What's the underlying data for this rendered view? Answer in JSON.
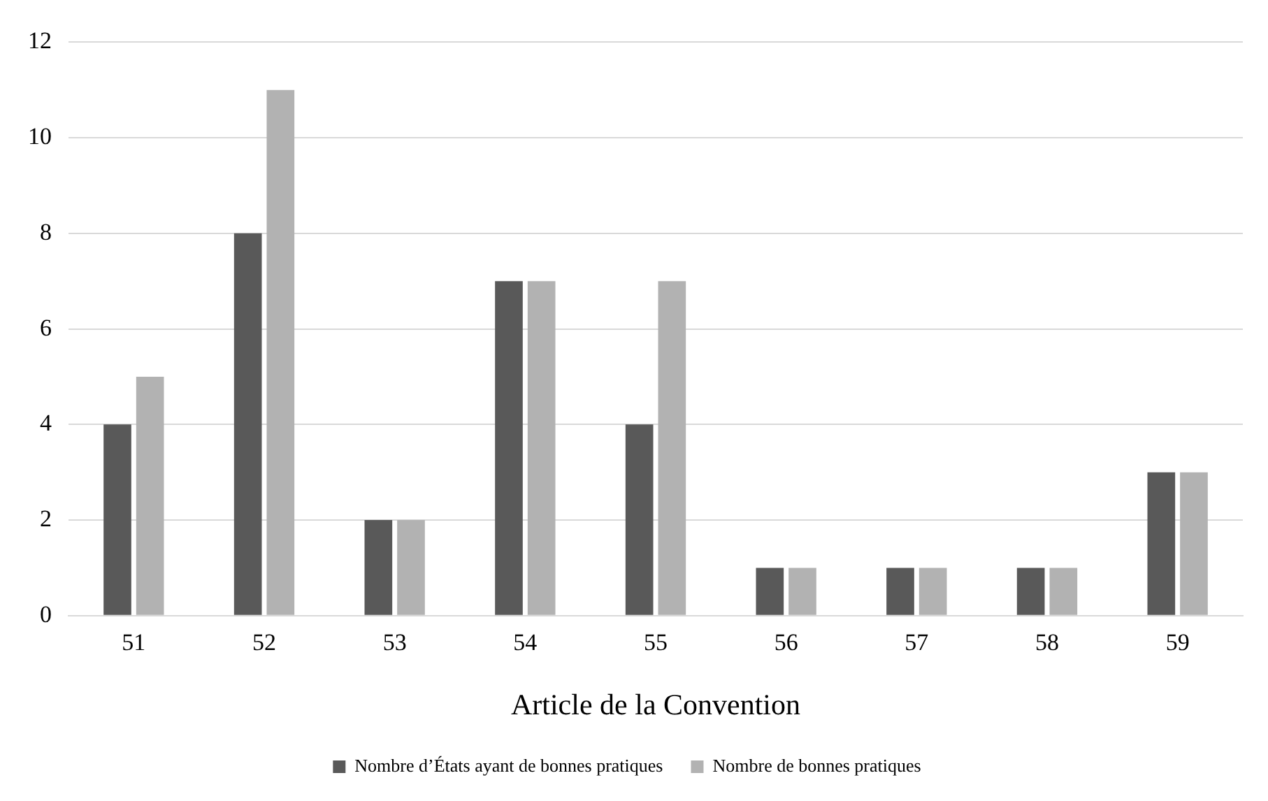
{
  "chart_data": {
    "type": "bar",
    "xlabel": "Article de la Convention",
    "categories": [
      "51",
      "52",
      "53",
      "54",
      "55",
      "56",
      "57",
      "58",
      "59"
    ],
    "series": [
      {
        "name": "Nombre d’États ayant de bonnes pratiques",
        "color": "#595959",
        "values": [
          4,
          8,
          2,
          7,
          4,
          1,
          1,
          1,
          3
        ]
      },
      {
        "name": "Nombre de bonnes pratiques",
        "color": "#b2b2b2",
        "values": [
          5,
          11,
          2,
          7,
          7,
          1,
          1,
          1,
          3
        ]
      }
    ],
    "ylim": [
      0,
      12
    ],
    "yticks": [
      0,
      2,
      4,
      6,
      8,
      10,
      12
    ],
    "grid": "y",
    "legend": "bottom"
  }
}
